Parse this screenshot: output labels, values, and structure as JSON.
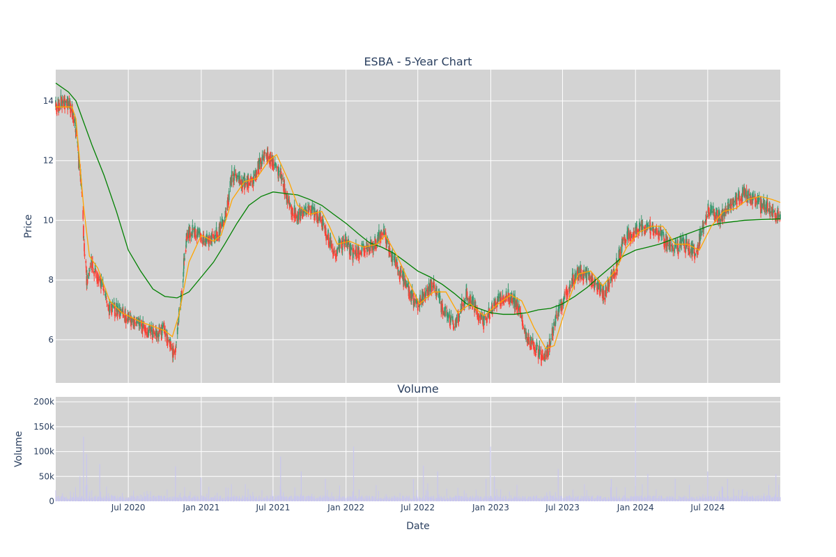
{
  "chart_data": [
    {
      "type": "candlestick",
      "title": "ESBA - 5-Year Chart",
      "ylabel": "Price",
      "xlim": [
        "2019-12-31",
        "2024-12-31"
      ],
      "ylim": [
        4.55,
        15.05
      ],
      "yticks": [
        6,
        8,
        10,
        12,
        14
      ],
      "grid": true,
      "background": "#d3d3d3",
      "colors": {
        "up": "#3d9970",
        "down": "#ff4136",
        "sma_short": "#ffa500",
        "sma_long": "#008000"
      },
      "price_path": [
        [
          "2019-12-31",
          13.8
        ],
        [
          "2020-01-20",
          14.0
        ],
        [
          "2020-02-05",
          13.9
        ],
        [
          "2020-02-15",
          13.4
        ],
        [
          "2020-02-25",
          12.3
        ],
        [
          "2020-03-05",
          11.0
        ],
        [
          "2020-03-12",
          9.0
        ],
        [
          "2020-03-20",
          7.8
        ],
        [
          "2020-03-28",
          8.6
        ],
        [
          "2020-04-10",
          8.3
        ],
        [
          "2020-04-25",
          7.9
        ],
        [
          "2020-05-10",
          7.1
        ],
        [
          "2020-06-01",
          7.0
        ],
        [
          "2020-07-01",
          6.7
        ],
        [
          "2020-08-01",
          6.5
        ],
        [
          "2020-09-01",
          6.2
        ],
        [
          "2020-10-01",
          6.3
        ],
        [
          "2020-10-25",
          5.5
        ],
        [
          "2020-11-10",
          7.3
        ],
        [
          "2020-11-25",
          9.5
        ],
        [
          "2020-12-15",
          9.6
        ],
        [
          "2021-01-15",
          9.3
        ],
        [
          "2021-02-15",
          9.6
        ],
        [
          "2021-03-01",
          10.0
        ],
        [
          "2021-03-20",
          11.5
        ],
        [
          "2021-04-15",
          11.2
        ],
        [
          "2021-05-15",
          11.4
        ],
        [
          "2021-06-10",
          12.3
        ],
        [
          "2021-07-01",
          12.0
        ],
        [
          "2021-07-20",
          11.5
        ],
        [
          "2021-08-10",
          10.5
        ],
        [
          "2021-09-01",
          10.1
        ],
        [
          "2021-10-01",
          10.4
        ],
        [
          "2021-11-01",
          10.0
        ],
        [
          "2021-12-01",
          8.9
        ],
        [
          "2021-12-31",
          9.3
        ],
        [
          "2022-01-15",
          8.9
        ],
        [
          "2022-02-15",
          9.0
        ],
        [
          "2022-03-15",
          9.2
        ],
        [
          "2022-04-05",
          9.7
        ],
        [
          "2022-04-25",
          8.8
        ],
        [
          "2022-05-20",
          8.2
        ],
        [
          "2022-06-10",
          7.6
        ],
        [
          "2022-07-01",
          7.1
        ],
        [
          "2022-07-20",
          7.6
        ],
        [
          "2022-08-10",
          7.9
        ],
        [
          "2022-09-01",
          7.0
        ],
        [
          "2022-10-01",
          6.5
        ],
        [
          "2022-11-01",
          7.5
        ],
        [
          "2022-12-15",
          6.6
        ],
        [
          "2023-01-15",
          7.3
        ],
        [
          "2023-02-15",
          7.5
        ],
        [
          "2023-03-15",
          7.0
        ],
        [
          "2023-04-01",
          6.0
        ],
        [
          "2023-05-01",
          5.6
        ],
        [
          "2023-05-20",
          5.4
        ],
        [
          "2023-06-15",
          6.7
        ],
        [
          "2023-07-15",
          7.8
        ],
        [
          "2023-08-15",
          8.3
        ],
        [
          "2023-09-15",
          8.0
        ],
        [
          "2023-10-15",
          7.5
        ],
        [
          "2023-11-15",
          8.5
        ],
        [
          "2023-12-01",
          9.3
        ],
        [
          "2024-01-01",
          9.7
        ],
        [
          "2024-02-01",
          9.8
        ],
        [
          "2024-03-01",
          9.6
        ],
        [
          "2024-04-01",
          9.0
        ],
        [
          "2024-05-01",
          9.2
        ],
        [
          "2024-06-01",
          8.9
        ],
        [
          "2024-07-01",
          10.3
        ],
        [
          "2024-08-01",
          10.1
        ],
        [
          "2024-09-01",
          10.6
        ],
        [
          "2024-10-01",
          10.9
        ],
        [
          "2024-11-01",
          10.6
        ],
        [
          "2024-12-01",
          10.4
        ],
        [
          "2024-12-31",
          10.1
        ]
      ],
      "sma_short": [
        [
          "2019-12-31",
          13.8
        ],
        [
          "2020-02-10",
          13.8
        ],
        [
          "2020-02-20",
          13.4
        ],
        [
          "2020-03-10",
          10.5
        ],
        [
          "2020-03-25",
          8.8
        ],
        [
          "2020-04-15",
          8.4
        ],
        [
          "2020-05-15",
          7.3
        ],
        [
          "2020-06-15",
          6.9
        ],
        [
          "2020-08-01",
          6.6
        ],
        [
          "2020-10-01",
          6.3
        ],
        [
          "2020-10-20",
          6.1
        ],
        [
          "2020-11-05",
          6.8
        ],
        [
          "2020-12-01",
          8.6
        ],
        [
          "2021-01-01",
          9.5
        ],
        [
          "2021-02-01",
          9.3
        ],
        [
          "2021-02-20",
          9.5
        ],
        [
          "2021-03-20",
          10.7
        ],
        [
          "2021-04-20",
          11.3
        ],
        [
          "2021-05-20",
          11.4
        ],
        [
          "2021-06-20",
          12.0
        ],
        [
          "2021-07-10",
          12.2
        ],
        [
          "2021-08-10",
          11.3
        ],
        [
          "2021-09-01",
          10.5
        ],
        [
          "2021-10-01",
          10.2
        ],
        [
          "2021-11-01",
          10.3
        ],
        [
          "2021-11-20",
          9.8
        ],
        [
          "2021-12-10",
          9.2
        ],
        [
          "2022-01-10",
          9.3
        ],
        [
          "2022-02-15",
          9.1
        ],
        [
          "2022-03-20",
          9.2
        ],
        [
          "2022-04-10",
          9.5
        ],
        [
          "2022-05-10",
          8.8
        ],
        [
          "2022-06-10",
          7.9
        ],
        [
          "2022-07-05",
          7.2
        ],
        [
          "2022-08-10",
          7.6
        ],
        [
          "2022-09-10",
          7.6
        ],
        [
          "2022-10-10",
          6.9
        ],
        [
          "2022-11-10",
          7.2
        ],
        [
          "2022-12-15",
          6.8
        ],
        [
          "2023-01-20",
          7.2
        ],
        [
          "2023-02-20",
          7.5
        ],
        [
          "2023-03-20",
          7.3
        ],
        [
          "2023-04-20",
          6.4
        ],
        [
          "2023-05-20",
          5.7
        ],
        [
          "2023-06-10",
          5.8
        ],
        [
          "2023-07-10",
          7.1
        ],
        [
          "2023-08-10",
          8.2
        ],
        [
          "2023-09-10",
          8.3
        ],
        [
          "2023-10-10",
          7.8
        ],
        [
          "2023-11-10",
          8.3
        ],
        [
          "2023-12-10",
          9.1
        ],
        [
          "2024-01-10",
          9.6
        ],
        [
          "2024-02-10",
          9.8
        ],
        [
          "2024-03-10",
          9.8
        ],
        [
          "2024-04-10",
          9.2
        ],
        [
          "2024-05-10",
          9.2
        ],
        [
          "2024-06-10",
          9.0
        ],
        [
          "2024-07-10",
          9.8
        ],
        [
          "2024-08-10",
          10.3
        ],
        [
          "2024-09-10",
          10.4
        ],
        [
          "2024-10-10",
          10.7
        ],
        [
          "2024-11-10",
          10.8
        ],
        [
          "2024-12-10",
          10.7
        ],
        [
          "2024-12-31",
          10.6
        ]
      ],
      "sma_long": [
        [
          "2019-12-31",
          14.6
        ],
        [
          "2020-02-01",
          14.3
        ],
        [
          "2020-02-20",
          14.0
        ],
        [
          "2020-04-01",
          12.5
        ],
        [
          "2020-05-01",
          11.5
        ],
        [
          "2020-06-01",
          10.3
        ],
        [
          "2020-07-01",
          9.0
        ],
        [
          "2020-08-01",
          8.3
        ],
        [
          "2020-09-01",
          7.7
        ],
        [
          "2020-10-01",
          7.45
        ],
        [
          "2020-11-01",
          7.4
        ],
        [
          "2020-12-01",
          7.6
        ],
        [
          "2021-01-01",
          8.1
        ],
        [
          "2021-02-01",
          8.6
        ],
        [
          "2021-03-01",
          9.2
        ],
        [
          "2021-04-01",
          9.9
        ],
        [
          "2021-05-01",
          10.5
        ],
        [
          "2021-06-01",
          10.8
        ],
        [
          "2021-07-01",
          10.95
        ],
        [
          "2021-08-01",
          10.9
        ],
        [
          "2021-09-01",
          10.85
        ],
        [
          "2021-10-01",
          10.7
        ],
        [
          "2021-11-01",
          10.5
        ],
        [
          "2021-12-01",
          10.2
        ],
        [
          "2022-01-01",
          9.9
        ],
        [
          "2022-02-01",
          9.55
        ],
        [
          "2022-03-01",
          9.25
        ],
        [
          "2022-04-01",
          9.1
        ],
        [
          "2022-05-01",
          8.9
        ],
        [
          "2022-06-01",
          8.6
        ],
        [
          "2022-07-01",
          8.3
        ],
        [
          "2022-08-01",
          8.1
        ],
        [
          "2022-09-01",
          7.85
        ],
        [
          "2022-10-01",
          7.55
        ],
        [
          "2022-11-01",
          7.2
        ],
        [
          "2022-12-01",
          7.05
        ],
        [
          "2023-01-01",
          6.9
        ],
        [
          "2023-02-01",
          6.85
        ],
        [
          "2023-03-01",
          6.85
        ],
        [
          "2023-04-01",
          6.9
        ],
        [
          "2023-05-01",
          7.0
        ],
        [
          "2023-06-01",
          7.05
        ],
        [
          "2023-07-01",
          7.2
        ],
        [
          "2023-08-01",
          7.45
        ],
        [
          "2023-09-01",
          7.75
        ],
        [
          "2023-10-01",
          8.1
        ],
        [
          "2023-11-01",
          8.45
        ],
        [
          "2023-12-01",
          8.8
        ],
        [
          "2024-01-01",
          9.0
        ],
        [
          "2024-02-01",
          9.1
        ],
        [
          "2024-03-01",
          9.2
        ],
        [
          "2024-04-01",
          9.35
        ],
        [
          "2024-05-01",
          9.5
        ],
        [
          "2024-06-01",
          9.65
        ],
        [
          "2024-07-01",
          9.8
        ],
        [
          "2024-08-01",
          9.9
        ],
        [
          "2024-09-01",
          9.95
        ],
        [
          "2024-10-01",
          10.0
        ],
        [
          "2024-11-01",
          10.02
        ],
        [
          "2024-12-31",
          10.05
        ]
      ]
    },
    {
      "type": "bar",
      "title": "Volume",
      "xlabel": "Date",
      "ylabel": "Volume",
      "xlim": [
        "2019-12-31",
        "2024-12-31"
      ],
      "ylim": [
        0,
        210000
      ],
      "yticks": [
        0,
        50000,
        100000,
        150000,
        200000
      ],
      "ytick_labels": [
        "0",
        "50k",
        "100k",
        "150k",
        "200k"
      ],
      "xtick_dates": [
        "2020-07-01",
        "2021-01-01",
        "2021-07-01",
        "2022-01-01",
        "2022-07-01",
        "2023-01-01",
        "2023-07-01",
        "2024-01-01",
        "2024-07-01"
      ],
      "xtick_labels": [
        "Jul 2020",
        "Jan 2021",
        "Jul 2021",
        "Jan 2022",
        "Jul 2022",
        "Jan 2023",
        "Jul 2023",
        "Jan 2024",
        "Jul 2024"
      ],
      "grid": true,
      "background": "#d3d3d3",
      "bar_color": "#c8c6ee",
      "spikes": [
        [
          "2020-03-10",
          130000
        ],
        [
          "2020-03-18",
          95000
        ],
        [
          "2020-04-20",
          75000
        ],
        [
          "2020-03-01",
          50000
        ],
        [
          "2020-10-28",
          70000
        ],
        [
          "2020-12-31",
          48000
        ],
        [
          "2021-07-20",
          90000
        ],
        [
          "2021-09-10",
          60000
        ],
        [
          "2021-11-10",
          45000
        ],
        [
          "2022-01-20",
          110000
        ],
        [
          "2022-06-20",
          45000
        ],
        [
          "2022-07-15",
          72000
        ],
        [
          "2022-08-20",
          60000
        ],
        [
          "2022-12-20",
          45000
        ],
        [
          "2022-12-31",
          110000
        ],
        [
          "2023-01-10",
          50000
        ],
        [
          "2023-06-20",
          65000
        ],
        [
          "2023-11-01",
          45000
        ],
        [
          "2024-01-01",
          198000
        ],
        [
          "2024-02-01",
          55000
        ],
        [
          "2024-04-10",
          45000
        ],
        [
          "2024-07-01",
          60000
        ],
        [
          "2024-08-20",
          45000
        ],
        [
          "2024-12-20",
          55000
        ]
      ]
    }
  ]
}
